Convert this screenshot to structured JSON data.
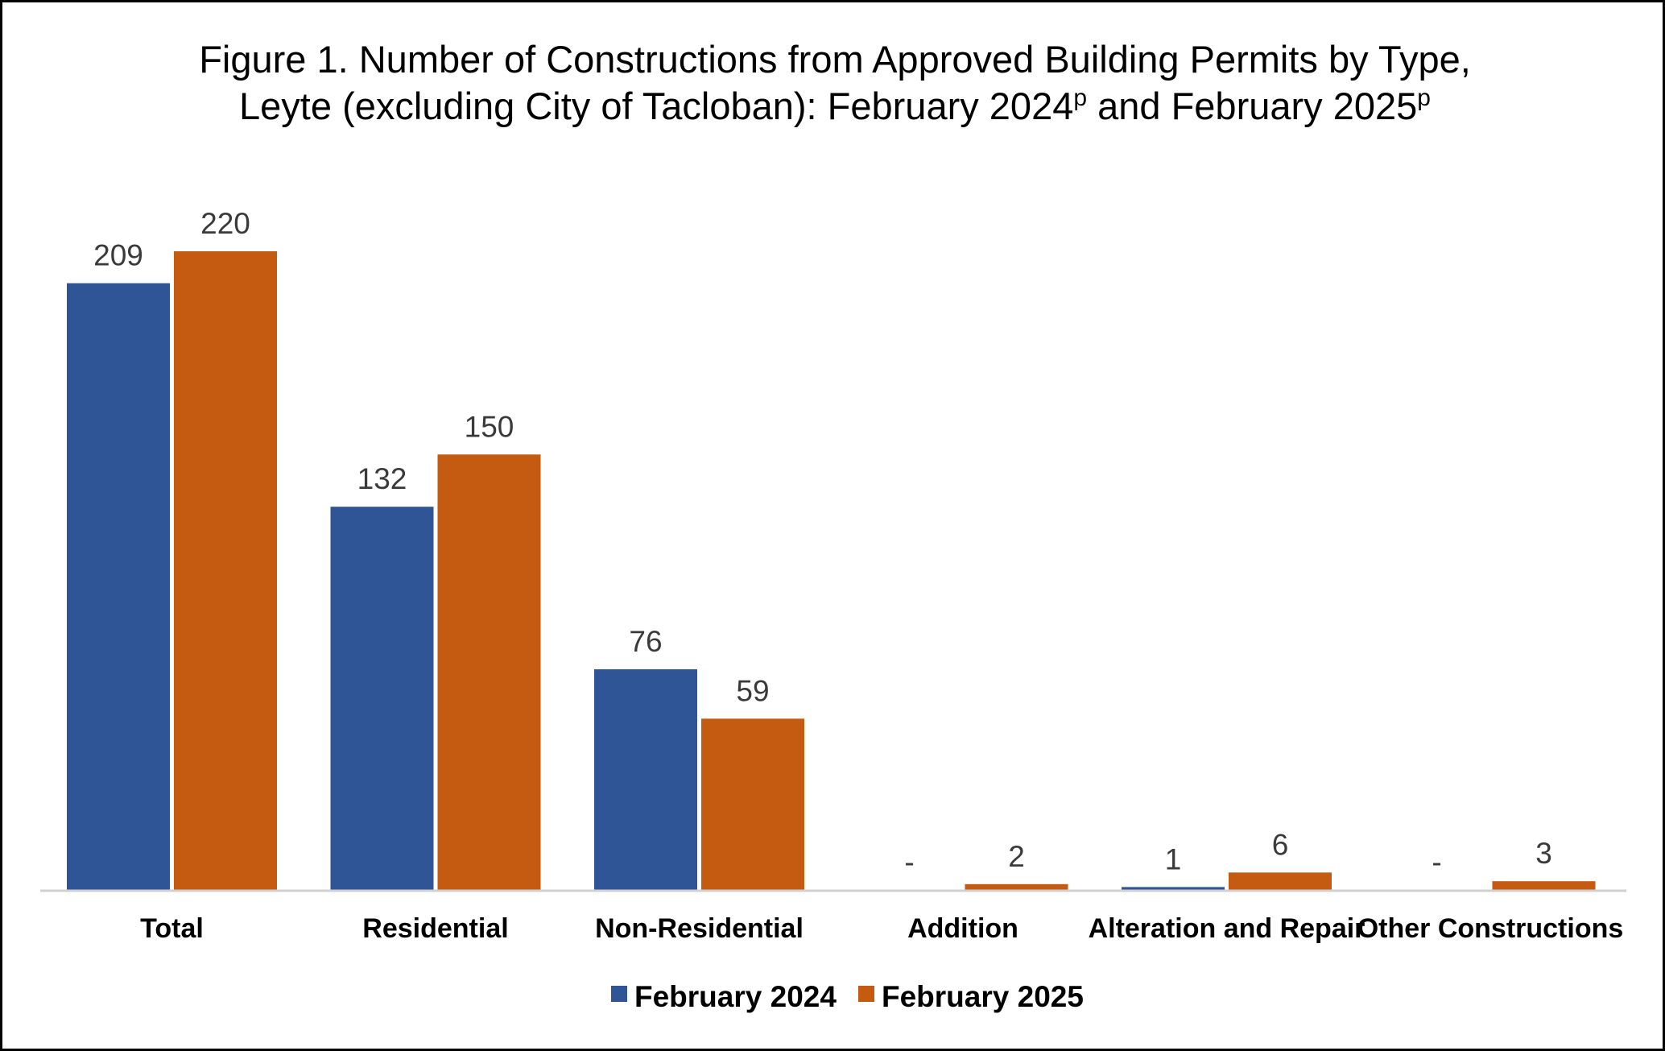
{
  "chart_data": {
    "type": "bar",
    "title_line1": "Figure 1. Number of Constructions from Approved Building Permits by Type,",
    "title_line2_main": "Leyte (excluding City of Tacloban): February 2024",
    "title_sup_1": "p",
    "title_line2_mid": " and February 2025",
    "title_sup_2": "p",
    "xlabel": "",
    "ylabel": "",
    "ylim": [
      0,
      220
    ],
    "grid": false,
    "legend_position": "bottom",
    "categories": [
      "Total",
      "Residential",
      "Non-Residential",
      "Addition",
      "Alteration and Repair",
      "Other Constructions"
    ],
    "series": [
      {
        "name": "February 2024",
        "color": "#2F5597",
        "values": [
          209,
          132,
          76,
          0,
          1,
          0
        ],
        "labels": [
          "209",
          "132",
          "76",
          "-",
          "1",
          "-"
        ]
      },
      {
        "name": "February 2025",
        "color": "#C55A11",
        "values": [
          220,
          150,
          59,
          2,
          6,
          3
        ],
        "labels": [
          "220",
          "150",
          "59",
          "2",
          "6",
          "3"
        ]
      }
    ]
  }
}
